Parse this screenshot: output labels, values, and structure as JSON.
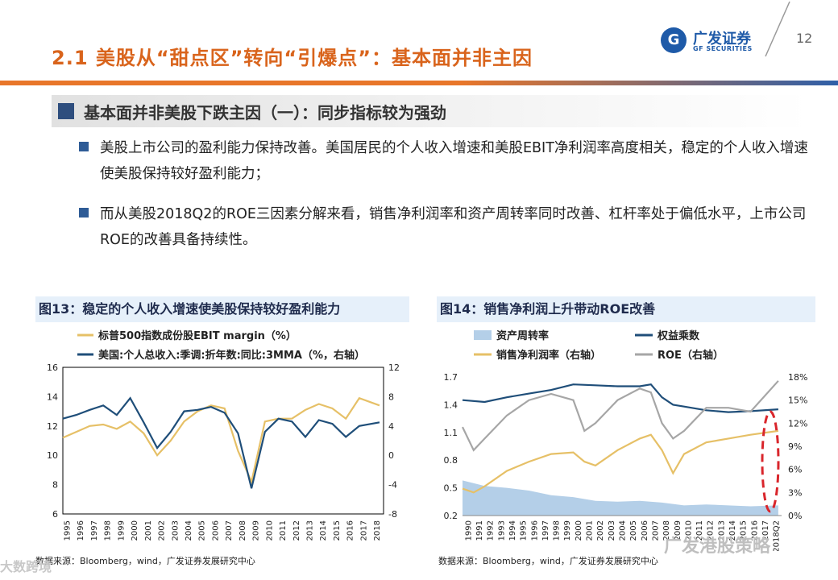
{
  "title": "2.1 美股从“甜点区”转向“引爆点”：基本面并非主因",
  "logo": {
    "cn": "广发证券",
    "en": "GF SECURITIES",
    "mark": "G"
  },
  "page_number": "12",
  "subheading": "基本面并非美股下跌主因（一）：同步指标较为强劲",
  "bullets": [
    "美股上市公司的盈利能力保持改善。美国居民的个人收入增速和美股EBIT净利润率高度相关，稳定的个人收入增速使美股保持较好盈利能力；",
    "而从美股2018Q2的ROE三因素分解来看，销售净利润率和资产周转率同时改善、杠杆率处于偏低水平，上市公司ROE的改善具备持续性。"
  ],
  "colors": {
    "orange": "#e8762a",
    "blue": "#2f5fa8",
    "gold": "#e6c067",
    "navy": "#1f4e79",
    "grey": "#a6a6a6",
    "area": "#b4cfe8",
    "red": "#d9262c"
  },
  "figure13": {
    "header": "图13：稳定的个人收入增速使美股保持较好盈利能力",
    "source": "数据来源：Bloomberg，wind，广发证券发展研究中心",
    "chart_data": {
      "type": "line",
      "series": [
        {
          "name": "标普500指数成份股EBIT margin（%）",
          "axis": "left",
          "color": "#e6c067",
          "x": [
            1995,
            1996,
            1997,
            1998,
            1999,
            2000,
            2001,
            2002,
            2003,
            2004,
            2005,
            2006,
            2007,
            2008,
            2009,
            2010,
            2011,
            2012,
            2013,
            2014,
            2015,
            2016,
            2017,
            2018.5
          ],
          "values": [
            11.2,
            11.6,
            12.0,
            12.1,
            11.8,
            12.3,
            11.5,
            10.0,
            11.0,
            12.3,
            13.0,
            13.4,
            13.2,
            10.3,
            8.2,
            12.3,
            12.5,
            12.5,
            13.1,
            13.5,
            13.2,
            12.5,
            13.9,
            13.4
          ]
        },
        {
          "name": "美国:个人总收入:季调:折年数:同比:3MMA（%，右轴）",
          "axis": "right",
          "color": "#1f4e79",
          "x": [
            1995,
            1996,
            1997,
            1998,
            1999,
            2000,
            2001,
            2002,
            2003,
            2004,
            2005,
            2006,
            2007,
            2008,
            2009,
            2010,
            2011,
            2012,
            2013,
            2014,
            2015,
            2016,
            2017,
            2018.5
          ],
          "values": [
            5.0,
            5.5,
            6.2,
            6.8,
            5.5,
            7.8,
            4.5,
            1.0,
            3.2,
            6.0,
            6.2,
            6.6,
            5.8,
            3.0,
            -4.5,
            3.2,
            5.0,
            4.6,
            2.5,
            4.8,
            4.3,
            2.5,
            4.0,
            4.5
          ]
        }
      ],
      "y_left": {
        "min": 6,
        "max": 16,
        "ticks": [
          "16",
          "14",
          "12",
          "10",
          "8",
          "6"
        ]
      },
      "y_right": {
        "min": -8,
        "max": 12,
        "ticks": [
          "12",
          "8",
          "4",
          "0",
          "-4",
          "-8"
        ]
      },
      "x_ticks": [
        "1995",
        "1996",
        "1997",
        "1998",
        "1999",
        "2000",
        "2001",
        "2002",
        "2003",
        "2004",
        "2005",
        "2006",
        "2007",
        "2008",
        "2009",
        "2010",
        "2011",
        "2012",
        "2013",
        "2014",
        "2015",
        "2016",
        "2017",
        "2018"
      ]
    }
  },
  "figure14": {
    "header": "图14：销售净利润上升带动ROE改善",
    "source": "数据来源：Bloomberg，wind，广发证券发展研究中心",
    "legend": [
      "资产周转率",
      "权益乘数",
      "销售净利润率（右轴）",
      "ROE（右轴）"
    ],
    "chart_data": {
      "type": "line",
      "series": [
        {
          "name": "资产周转率",
          "kind": "area",
          "axis": "left",
          "x": [
            1990,
            1992,
            1994,
            1996,
            1998,
            2000,
            2002,
            2004,
            2006,
            2008,
            2010,
            2012,
            2014,
            2016,
            2018.5
          ],
          "values": [
            0.58,
            0.52,
            0.5,
            0.47,
            0.42,
            0.4,
            0.36,
            0.35,
            0.36,
            0.34,
            0.31,
            0.32,
            0.31,
            0.3,
            0.31
          ]
        },
        {
          "name": "权益乘数",
          "axis": "left",
          "x": [
            1990,
            1992,
            1994,
            1996,
            1998,
            2000,
            2002,
            2004,
            2006,
            2007,
            2008,
            2009,
            2010,
            2012,
            2014,
            2016,
            2018.5
          ],
          "values": [
            1.45,
            1.43,
            1.48,
            1.52,
            1.56,
            1.62,
            1.61,
            1.6,
            1.6,
            1.62,
            1.48,
            1.4,
            1.38,
            1.34,
            1.32,
            1.33,
            1.35
          ]
        },
        {
          "name": "销售净利润率（右轴）",
          "axis": "right",
          "x": [
            1990,
            1991,
            1992,
            1994,
            1996,
            1998,
            2000,
            2001,
            2002,
            2004,
            2006,
            2007,
            2008,
            2009,
            2010,
            2012,
            2014,
            2016,
            2018.5
          ],
          "values": [
            3.5,
            3.0,
            3.8,
            5.8,
            7.0,
            8.0,
            8.2,
            7.0,
            6.5,
            8.5,
            10.0,
            10.5,
            8.5,
            5.5,
            8.0,
            9.5,
            10.0,
            10.5,
            11.0
          ]
        },
        {
          "name": "ROE（右轴）",
          "axis": "right",
          "x": [
            1990,
            1991,
            1992,
            1994,
            1996,
            1998,
            2000,
            2001,
            2002,
            2004,
            2006,
            2007,
            2008,
            2009,
            2010,
            2012,
            2014,
            2016,
            2018.5
          ],
          "values": [
            11.5,
            8.5,
            10.0,
            13.0,
            15.0,
            15.8,
            15.0,
            11.0,
            12.0,
            15.0,
            16.5,
            16.0,
            12.0,
            10.0,
            11.0,
            14.0,
            14.0,
            13.5,
            17.5
          ]
        }
      ],
      "y_left": {
        "min": 0.2,
        "max": 1.7,
        "ticks": [
          "1.7",
          "1.4",
          "1.1",
          "0.8",
          "0.5",
          "0.2"
        ]
      },
      "y_right": {
        "min": 0,
        "max": 18,
        "ticks": [
          "18%",
          "15%",
          "12%",
          "9%",
          "6%",
          "3%",
          "0%"
        ]
      },
      "x_ticks": [
        "1990",
        "1991",
        "1992",
        "1993",
        "1994",
        "1995",
        "1996",
        "1997",
        "1998",
        "1999",
        "2000",
        "2001",
        "2002",
        "2003",
        "2004",
        "2005",
        "2006",
        "2007",
        "2008",
        "2009",
        "2010",
        "2011",
        "2012",
        "2013",
        "2014",
        "2015",
        "2016",
        "2017",
        "2018Q2"
      ]
    }
  },
  "watermarks": {
    "right": "广发港股策略",
    "left": "大数跨境"
  }
}
